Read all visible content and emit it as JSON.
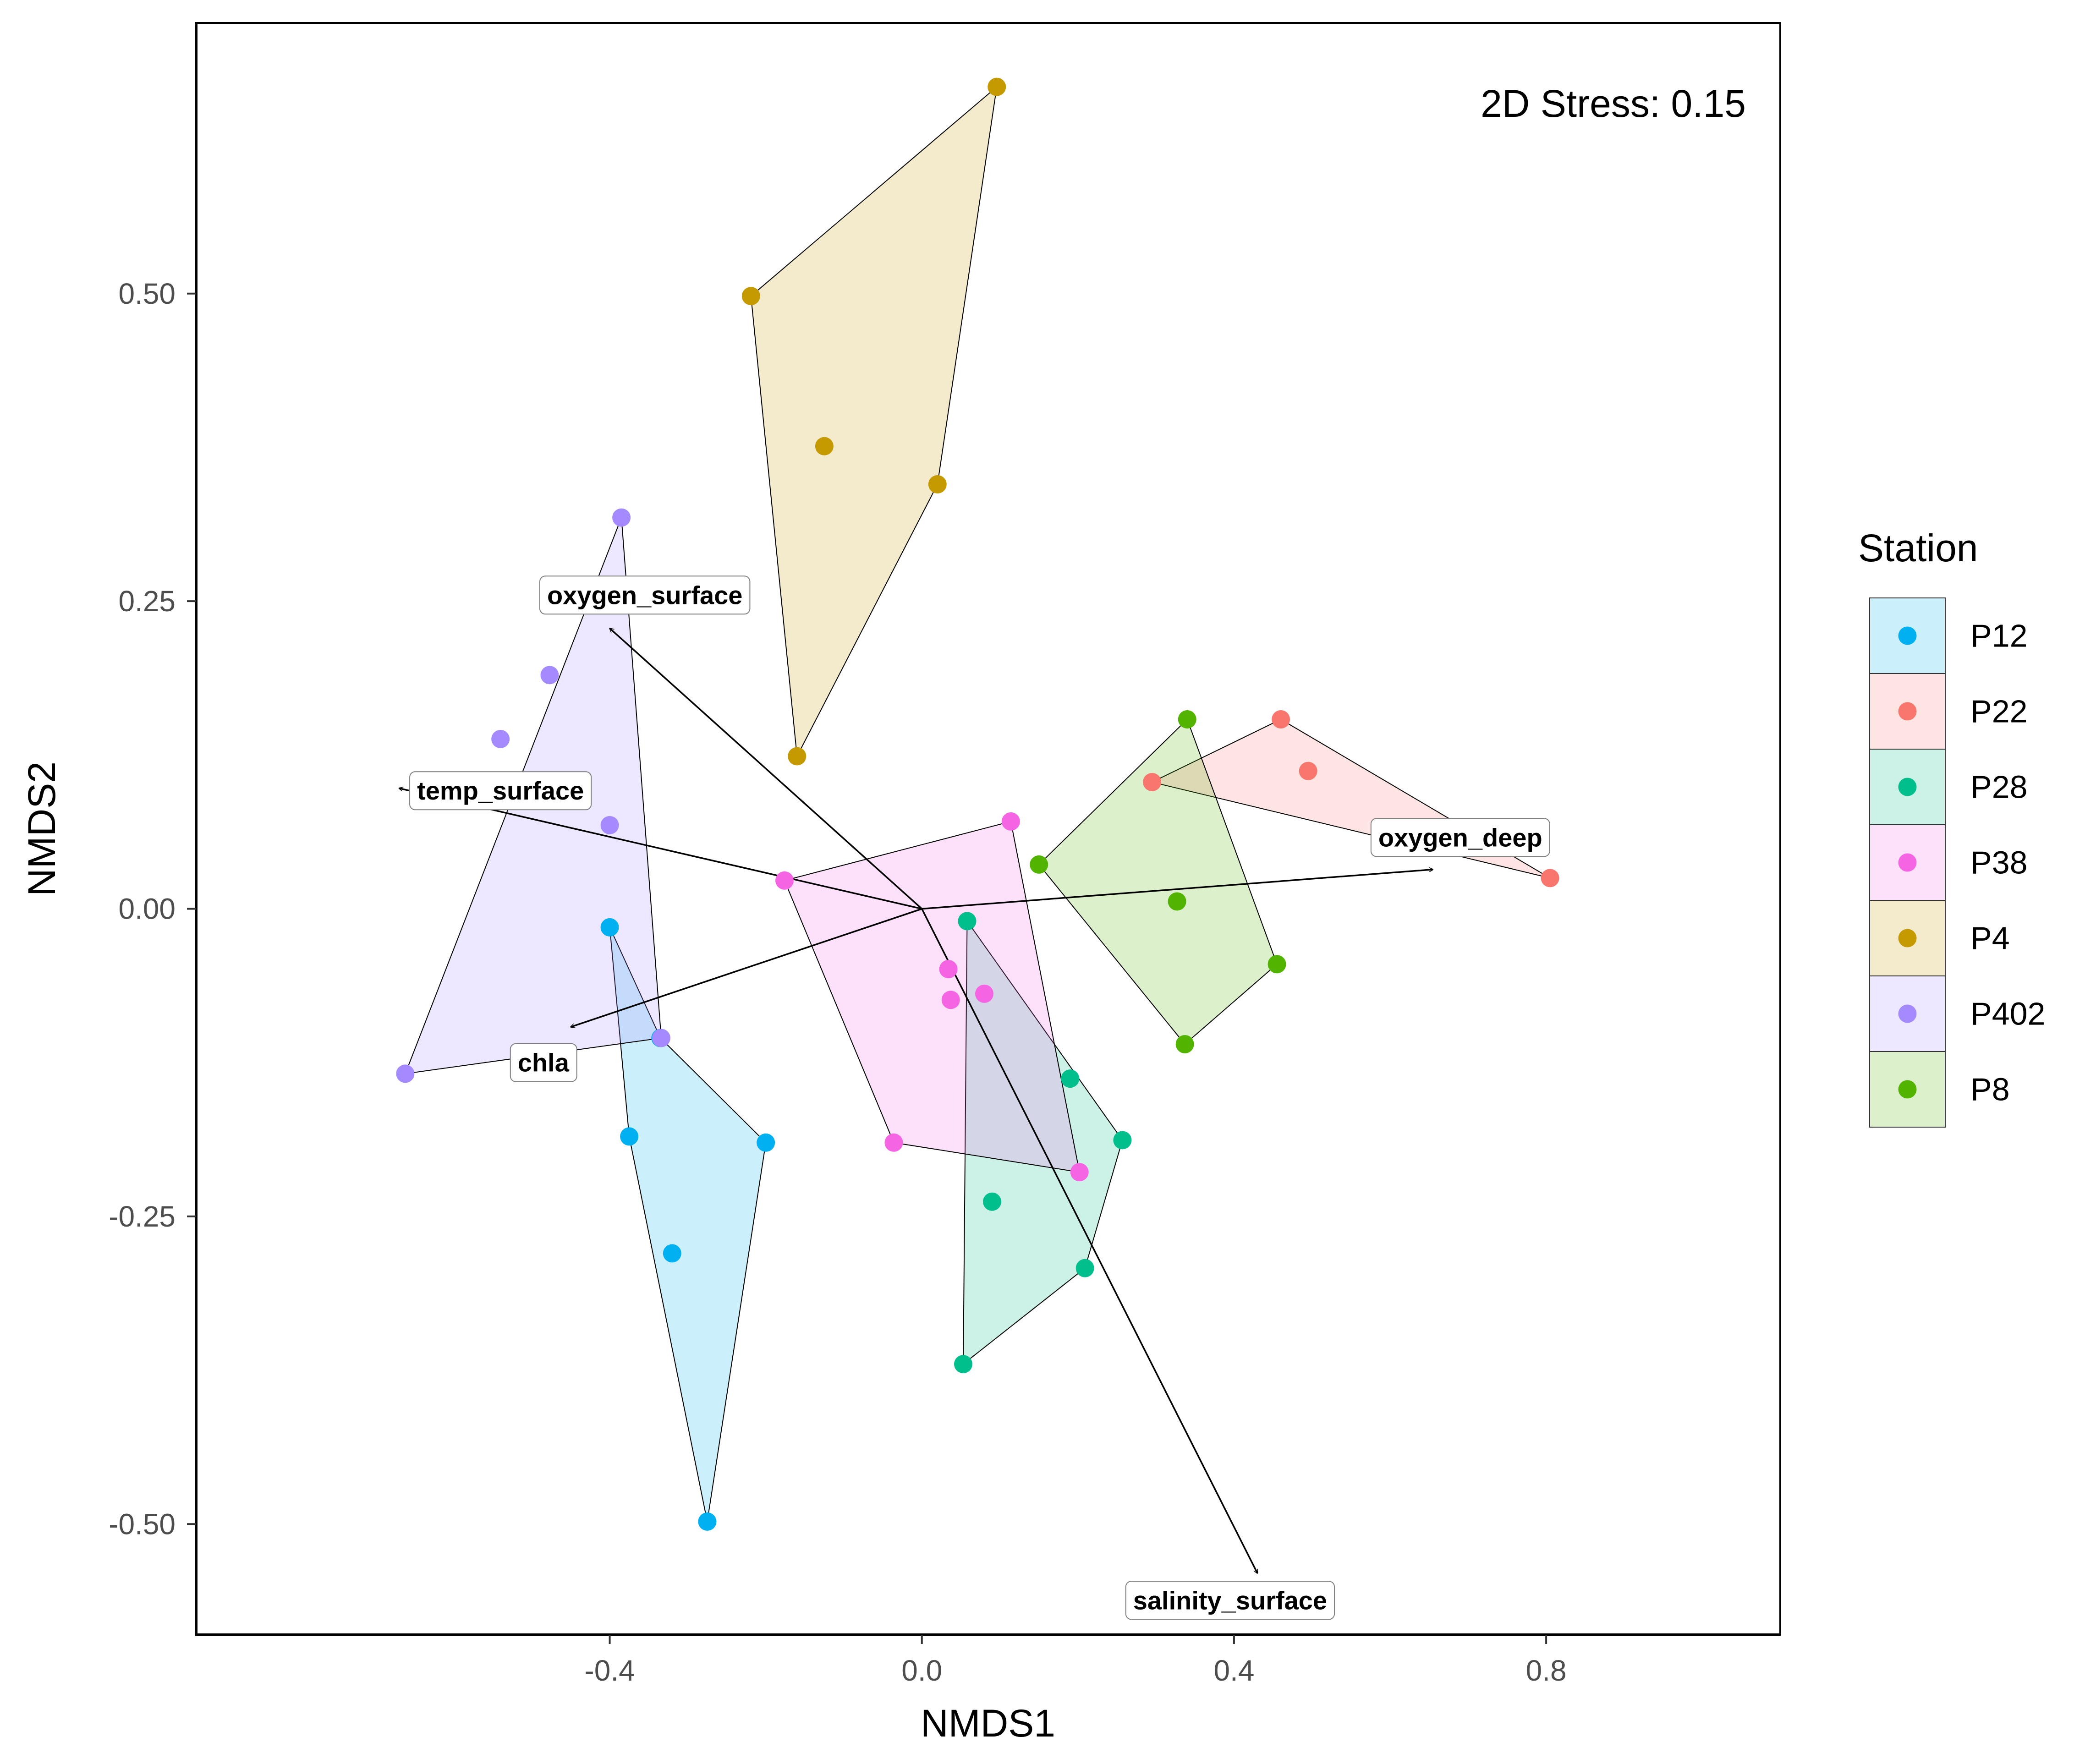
{
  "chart_data": {
    "type": "scatter",
    "subtype": "NMDS ordination with convex hulls and environmental vectors",
    "title": "",
    "xlabel": "NMDS1",
    "ylabel": "NMDS2",
    "xlim": [
      -0.93,
      1.1
    ],
    "ylim": [
      -0.59,
      0.72
    ],
    "xticks": [
      -0.4,
      0.0,
      0.4,
      0.8
    ],
    "xtick_labels": [
      "-0.4",
      "0.0",
      "0.4",
      "0.8"
    ],
    "yticks": [
      -0.5,
      -0.25,
      0.0,
      0.25,
      0.5
    ],
    "ytick_labels": [
      "-0.50",
      "-0.25",
      "0.00",
      "0.25",
      "0.50"
    ],
    "grid": false,
    "annotation": "2D Stress: 0.15",
    "legend": {
      "title": "Station",
      "placement": "right"
    },
    "series": [
      {
        "name": "P12",
        "color": "#00B0F0",
        "x": [
          -0.4,
          -0.335,
          -0.375,
          -0.2,
          -0.32,
          -0.275
        ],
        "y": [
          -0.015,
          -0.105,
          -0.185,
          -0.19,
          -0.28,
          -0.498
        ]
      },
      {
        "name": "P22",
        "color": "#F8766D",
        "x": [
          0.295,
          0.46,
          0.495,
          0.805
        ],
        "y": [
          0.103,
          0.154,
          0.112,
          0.025
        ]
      },
      {
        "name": "P28",
        "color": "#00BF8C",
        "x": [
          0.058,
          0.19,
          0.257,
          0.09,
          0.209,
          0.053
        ],
        "y": [
          -0.01,
          -0.138,
          -0.188,
          -0.238,
          -0.292,
          -0.37
        ]
      },
      {
        "name": "P38",
        "color": "#F564E3",
        "x": [
          -0.176,
          0.114,
          0.034,
          0.037,
          0.08,
          -0.036,
          0.202
        ],
        "y": [
          0.023,
          0.071,
          -0.049,
          -0.074,
          -0.069,
          -0.19,
          -0.214
        ]
      },
      {
        "name": "P4",
        "color": "#C49A00",
        "x": [
          0.096,
          -0.219,
          -0.125,
          0.02,
          -0.16
        ],
        "y": [
          0.668,
          0.498,
          0.376,
          0.345,
          0.124
        ]
      },
      {
        "name": "P402",
        "color": "#A58AFF",
        "x": [
          -0.385,
          -0.477,
          -0.54,
          -0.4,
          -0.334,
          -0.662
        ],
        "y": [
          0.318,
          0.19,
          0.138,
          0.068,
          -0.105,
          -0.134
        ]
      },
      {
        "name": "P8",
        "color": "#53B400",
        "x": [
          0.34,
          0.15,
          0.327,
          0.455,
          0.337
        ],
        "y": [
          0.154,
          0.036,
          0.006,
          -0.045,
          -0.11
        ]
      }
    ],
    "hulls": [
      {
        "series": "P12",
        "x": [
          -0.4,
          -0.335,
          -0.2,
          -0.275,
          -0.375
        ],
        "y": [
          -0.015,
          -0.105,
          -0.19,
          -0.498,
          -0.185
        ]
      },
      {
        "series": "P22",
        "x": [
          0.295,
          0.46,
          0.805
        ],
        "y": [
          0.103,
          0.154,
          0.025
        ]
      },
      {
        "series": "P28",
        "x": [
          0.058,
          0.257,
          0.209,
          0.053
        ],
        "y": [
          -0.01,
          -0.188,
          -0.292,
          -0.37
        ]
      },
      {
        "series": "P38",
        "x": [
          -0.176,
          0.114,
          0.202,
          -0.036
        ],
        "y": [
          0.023,
          0.071,
          -0.214,
          -0.19
        ]
      },
      {
        "series": "P4",
        "x": [
          -0.219,
          0.096,
          0.02,
          -0.16
        ],
        "y": [
          0.498,
          0.668,
          0.345,
          0.124
        ]
      },
      {
        "series": "P402",
        "x": [
          -0.385,
          -0.334,
          -0.662
        ],
        "y": [
          0.318,
          -0.105,
          -0.134
        ]
      },
      {
        "series": "P8",
        "x": [
          0.15,
          0.34,
          0.455,
          0.337
        ],
        "y": [
          0.036,
          0.154,
          -0.045,
          -0.11
        ]
      }
    ],
    "vectors": [
      {
        "name": "oxygen_surface",
        "x": -0.4,
        "y": 0.228,
        "label_x": -0.355,
        "label_y": 0.255
      },
      {
        "name": "temp_surface",
        "x": -0.67,
        "y": 0.098,
        "label_x": -0.54,
        "label_y": 0.096
      },
      {
        "name": "oxygen_deep",
        "x": 0.655,
        "y": 0.032,
        "label_x": 0.69,
        "label_y": 0.058
      },
      {
        "name": "chla",
        "x": -0.45,
        "y": -0.096,
        "label_x": -0.485,
        "label_y": -0.125
      },
      {
        "name": "salinity_surface",
        "x": 0.43,
        "y": -0.54,
        "label_x": 0.395,
        "label_y": -0.562
      }
    ]
  }
}
